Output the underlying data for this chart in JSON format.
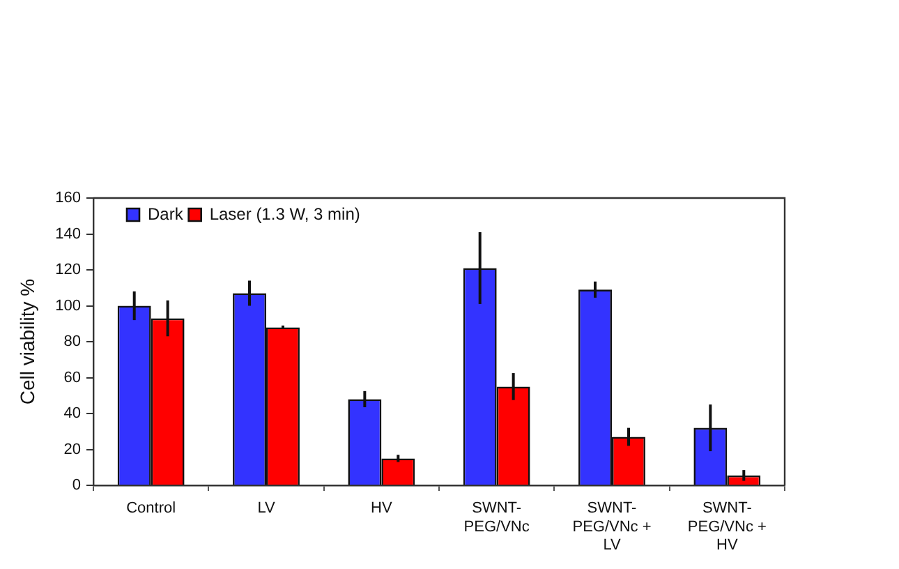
{
  "chart_data": {
    "type": "bar",
    "categories": [
      "Control",
      "LV",
      "HV",
      "SWNT-\nPEG/VNc",
      "SWNT-\nPEG/VNc +\nLV",
      "SWNT-\nPEG/VNc +\nHV"
    ],
    "ylabel": "Cell viability %",
    "ylim": [
      0,
      160
    ],
    "yticks": [
      0,
      20,
      40,
      60,
      80,
      100,
      120,
      140,
      160
    ],
    "grid": false,
    "legend": "top left",
    "series": [
      {
        "name": "Dark",
        "color": "#3333ff",
        "values": [
          100,
          107,
          48,
          121,
          109,
          32
        ],
        "errors": [
          8,
          7,
          4.5,
          20,
          4.5,
          13
        ]
      },
      {
        "name": "Laser (1.3 W, 3 min)",
        "color": "#ff0000",
        "values": [
          93,
          88,
          15,
          55,
          27,
          5.5
        ],
        "errors": [
          10,
          1,
          2,
          7.5,
          5,
          3
        ]
      }
    ]
  }
}
